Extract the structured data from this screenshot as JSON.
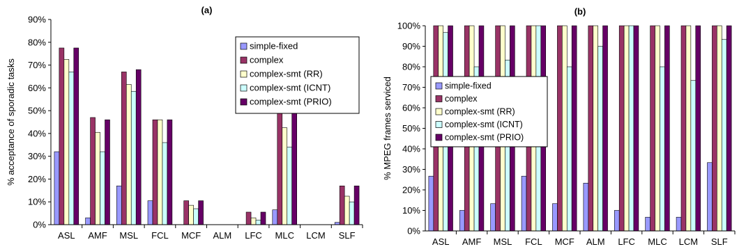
{
  "chart_data": [
    {
      "type": "bar",
      "title": "(a)",
      "ylabel": "% acceptance of sporadic tasks",
      "xlabel": "",
      "ylim": [
        0,
        90
      ],
      "yticks": [
        "0%",
        "10%",
        "20%",
        "30%",
        "40%",
        "50%",
        "60%",
        "70%",
        "80%",
        "90%"
      ],
      "grid": false,
      "legend_position": "top-right",
      "categories": [
        "ASL",
        "AMF",
        "MSL",
        "FCL",
        "MCF",
        "ALM",
        "LFC",
        "MLC",
        "LCM",
        "SLF"
      ],
      "series": [
        {
          "name": "simple-fixed",
          "color": "#9999ff",
          "values": [
            32,
            3,
            17,
            10.5,
            0,
            0,
            0,
            6.5,
            0,
            1
          ]
        },
        {
          "name": "complex",
          "color": "#993366",
          "values": [
            77.5,
            47,
            67,
            46,
            10.5,
            0,
            5.5,
            51,
            0,
            17
          ]
        },
        {
          "name": "complex-smt (RR)",
          "color": "#ffffcc",
          "values": [
            72.5,
            40.5,
            61.5,
            46,
            8.5,
            0,
            3,
            42.5,
            0,
            12.5
          ]
        },
        {
          "name": "complex-smt (ICNT)",
          "color": "#ccffff",
          "values": [
            67,
            32,
            58.5,
            36,
            7,
            0,
            2,
            34,
            0,
            10
          ]
        },
        {
          "name": "complex-smt (PRIO)",
          "color": "#660066",
          "values": [
            77.5,
            46,
            68,
            46,
            10.5,
            0,
            5.5,
            51,
            0,
            17
          ]
        }
      ]
    },
    {
      "type": "bar",
      "title": "(b)",
      "ylabel": "% MPEG frames serviced",
      "xlabel": "",
      "ylim": [
        0,
        100
      ],
      "yticks": [
        "0%",
        "10%",
        "20%",
        "30%",
        "40%",
        "50%",
        "60%",
        "70%",
        "80%",
        "90%",
        "100%"
      ],
      "grid": false,
      "legend_position": "center-left",
      "categories": [
        "ASL",
        "AMF",
        "MSL",
        "FCL",
        "MCF",
        "ALM",
        "LFC",
        "MLC",
        "LCM",
        "SLF"
      ],
      "series": [
        {
          "name": "simple-fixed",
          "color": "#9999ff",
          "values": [
            26.7,
            10,
            13.3,
            26.7,
            13.3,
            23.3,
            10,
            6.7,
            6.7,
            33.3
          ]
        },
        {
          "name": "complex",
          "color": "#993366",
          "values": [
            100,
            100,
            100,
            100,
            100,
            100,
            100,
            100,
            100,
            100
          ]
        },
        {
          "name": "complex-smt (RR)",
          "color": "#ffffcc",
          "values": [
            100,
            100,
            100,
            100,
            100,
            100,
            100,
            100,
            100,
            100
          ]
        },
        {
          "name": "complex-smt (ICNT)",
          "color": "#ccffff",
          "values": [
            96.7,
            80,
            83.3,
            100,
            80,
            90,
            100,
            80,
            73.3,
            93.3
          ]
        },
        {
          "name": "complex-smt (PRIO)",
          "color": "#660066",
          "values": [
            100,
            100,
            100,
            100,
            100,
            100,
            100,
            100,
            100,
            100
          ]
        }
      ]
    }
  ]
}
